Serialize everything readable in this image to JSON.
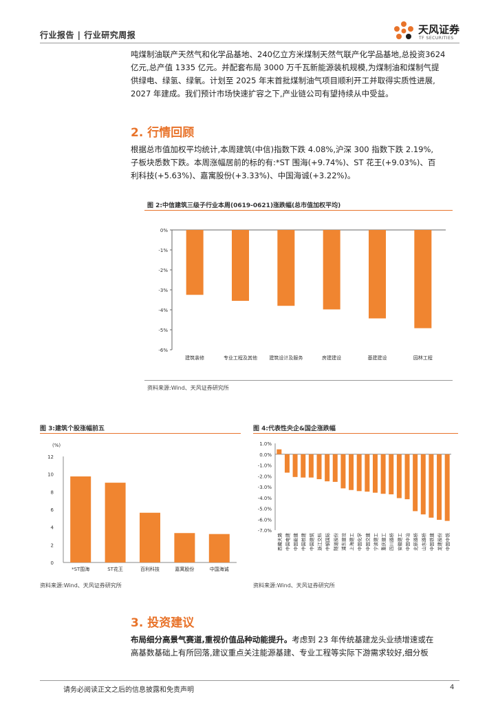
{
  "header": {
    "title": "行业报告 | 行业研究周报",
    "logo_cn": "天风证券",
    "logo_en": "TF SECURITIES"
  },
  "intro_paragraph": [
    "吨煤制油联产天然气和化学品基地、240亿立方米煤制天然气联产化学品基地,总投资3624",
    "亿元,总产值 1335 亿元。并配套布局 3000 万千瓦新能源装机规模,为煤制油和煤制气提",
    "供绿电、绿氢、绿氧。计划至 2025 年末首批煤制油气项目顺利开工并取得实质性进展,",
    "2027 年建成。我们预计市场快速扩容之下,产业链公司有望持续从中受益。"
  ],
  "section2": {
    "title": "2. 行情回顾",
    "paragraph": [
      "根据总市值加权平均统计,本周建筑(中信)指数下跌 4.08%,沪深 300 指数下跌 2.19%,",
      "子板块悉数下跌。本周涨幅居前的标的有:*ST 围海(+9.74%)、ST 花王(+9.03%)、百",
      "利科技(+5.63%)、嘉寓股份(+3.33%)、中国海诚(+3.22%)。"
    ]
  },
  "figure2": {
    "title": "图 2:中信建筑三级子行业本周(0619-0621)涨跌幅(总市值加权平均)",
    "source": "资料来源:Wind、天风证券研究所"
  },
  "figure3": {
    "title": "图 3:建筑个股涨幅前五",
    "unit": "(%)",
    "source": "资料来源:Wind、天风证券研究所"
  },
  "figure4": {
    "title": "图 4:代表性央企&国企涨跌幅",
    "source": "资料来源:Wind、天风证券研究所"
  },
  "section3": {
    "title": "3. 投资建议",
    "lead": "布局细分高景气赛道,重视价值品种动能提升。",
    "rest_line1": "考虑到 23 年传统基建龙头业绩增速或在",
    "line2": "高基数基础上有所回落,建议重点关注能源基建、专业工程等实际下游需求较好,细分板"
  },
  "footer": {
    "disclaimer": "请务必阅读正文之后的信息披露和免责声明",
    "page": "4"
  },
  "colors": {
    "accent": "#e8732a",
    "bar": "#f08530"
  },
  "chart_data": [
    {
      "type": "bar",
      "categories": [
        "建筑装修",
        "专业工程及其他",
        "建筑设计及服务",
        "房建建设",
        "基建建设",
        "园林工程"
      ],
      "values": [
        -3.25,
        -3.55,
        -3.8,
        -3.98,
        -4.43,
        -4.92
      ],
      "ylim": [
        -6,
        0
      ],
      "yticks": [
        "0%",
        "-1%",
        "-2%",
        "-3%",
        "-4%",
        "-5%",
        "-6%"
      ],
      "grid": false
    },
    {
      "type": "bar",
      "categories": [
        "*ST围海",
        "ST花王",
        "百利科技",
        "嘉寓股份",
        "中国海诚"
      ],
      "values": [
        9.74,
        9.03,
        5.63,
        3.33,
        3.22
      ],
      "ylim": [
        0,
        12
      ],
      "yticks": [
        "0",
        "2",
        "4",
        "6",
        "8",
        "10",
        "12"
      ],
      "grid": false
    },
    {
      "type": "bar",
      "categories": [
        "西藏天路",
        "中国电建",
        "中国能建",
        "中国核建",
        "中国建筑",
        "浙江交科",
        "中钢国际",
        "隧道股份",
        "浦东建设",
        "上海建工",
        "中国化学",
        "中国交建",
        "宁波建工",
        "重庆建工",
        "四川路桥",
        "安徽建工",
        "中国中冶",
        "北新路桥",
        "山东路桥",
        "中国铁建",
        "龙建股份",
        "中国中铁"
      ],
      "values": [
        0.45,
        -1.7,
        -2.1,
        -2.15,
        -2.15,
        -2.3,
        -2.5,
        -2.55,
        -3.15,
        -3.3,
        -3.4,
        -3.45,
        -3.55,
        -3.65,
        -3.7,
        -4.05,
        -4.15,
        -5.25,
        -5.55,
        -5.85,
        -6.05,
        -6.15
      ],
      "ylim": [
        -7,
        1
      ],
      "yticks": [
        "1.0%",
        "0.0%",
        "-1.0%",
        "-2.0%",
        "-3.0%",
        "-4.0%",
        "-5.0%",
        "-6.0%",
        "-7.0%"
      ],
      "grid": false
    }
  ]
}
